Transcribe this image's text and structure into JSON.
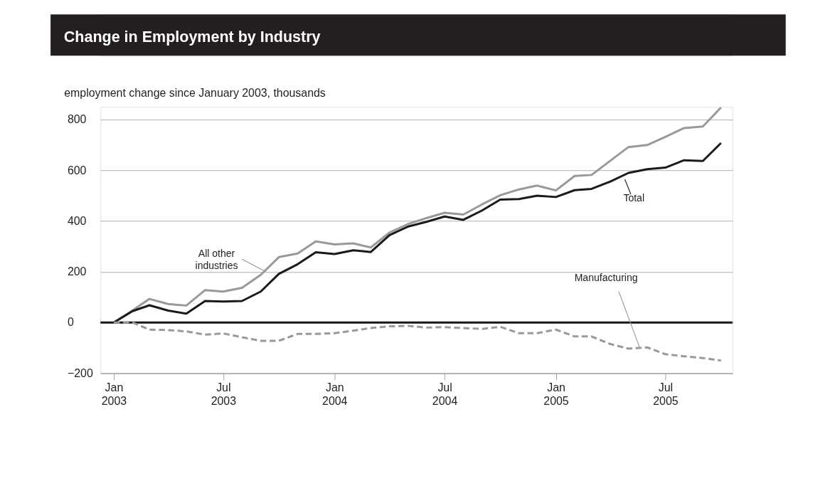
{
  "chart_data": {
    "type": "line",
    "title": "Change in Employment by Industry",
    "ylabel": "employment change since January 2003, thousands",
    "x": [
      "2003-01",
      "2003-02",
      "2003-03",
      "2003-04",
      "2003-05",
      "2003-06",
      "2003-07",
      "2003-08",
      "2003-09",
      "2003-10",
      "2003-11",
      "2003-12",
      "2004-01",
      "2004-02",
      "2004-03",
      "2004-04",
      "2004-05",
      "2004-06",
      "2004-07",
      "2004-08",
      "2004-09",
      "2004-10",
      "2004-11",
      "2004-12",
      "2005-01",
      "2005-02",
      "2005-03",
      "2005-04",
      "2005-05",
      "2005-06",
      "2005-07",
      "2005-08",
      "2005-09",
      "2005-10"
    ],
    "series": [
      {
        "name": "All other industries",
        "color": "#999999",
        "line_style": "solid",
        "values": [
          0,
          48,
          93,
          73,
          67,
          128,
          122,
          137,
          188,
          258,
          272,
          320,
          308,
          312,
          296,
          355,
          388,
          412,
          433,
          426,
          466,
          502,
          525,
          540,
          521,
          578,
          582,
          638,
          692,
          700,
          732,
          767,
          773,
          848
        ]
      },
      {
        "name": "Total",
        "color": "#1a1a1a",
        "line_style": "solid",
        "values": [
          0,
          45,
          68,
          47,
          35,
          85,
          83,
          85,
          122,
          192,
          230,
          277,
          270,
          285,
          278,
          345,
          378,
          397,
          418,
          405,
          442,
          485,
          487,
          500,
          495,
          522,
          527,
          556,
          590,
          605,
          611,
          640,
          637,
          708
        ]
      },
      {
        "name": "Manufacturing",
        "color": "#999999",
        "line_style": "dashed",
        "values": [
          0,
          0,
          -28,
          -30,
          -35,
          -48,
          -43,
          -58,
          -72,
          -72,
          -45,
          -45,
          -42,
          -32,
          -22,
          -15,
          -13,
          -20,
          -18,
          -22,
          -25,
          -17,
          -42,
          -42,
          -28,
          -55,
          -55,
          -85,
          -103,
          -98,
          -125,
          -133,
          -140,
          -150
        ]
      }
    ],
    "xlim": [
      "2002-12-10",
      "2005-10-20"
    ],
    "xticks": [
      {
        "value": "2003-01",
        "label": "Jan 2003"
      },
      {
        "value": "2003-07",
        "label": "Jul 2003"
      },
      {
        "value": "2004-01",
        "label": "Jan 2004"
      },
      {
        "value": "2004-07",
        "label": "Jul 2004"
      },
      {
        "value": "2005-01",
        "label": "Jan 2005"
      },
      {
        "value": "2005-07",
        "label": "Jul 2005"
      }
    ],
    "ylim": [
      -200,
      850
    ],
    "yticks": [
      -200,
      0,
      200,
      400,
      600,
      800
    ],
    "ref_lines": [
      {
        "axis": "y",
        "value": 0,
        "color": "#1a1a1a"
      }
    ],
    "grid": "y"
  }
}
